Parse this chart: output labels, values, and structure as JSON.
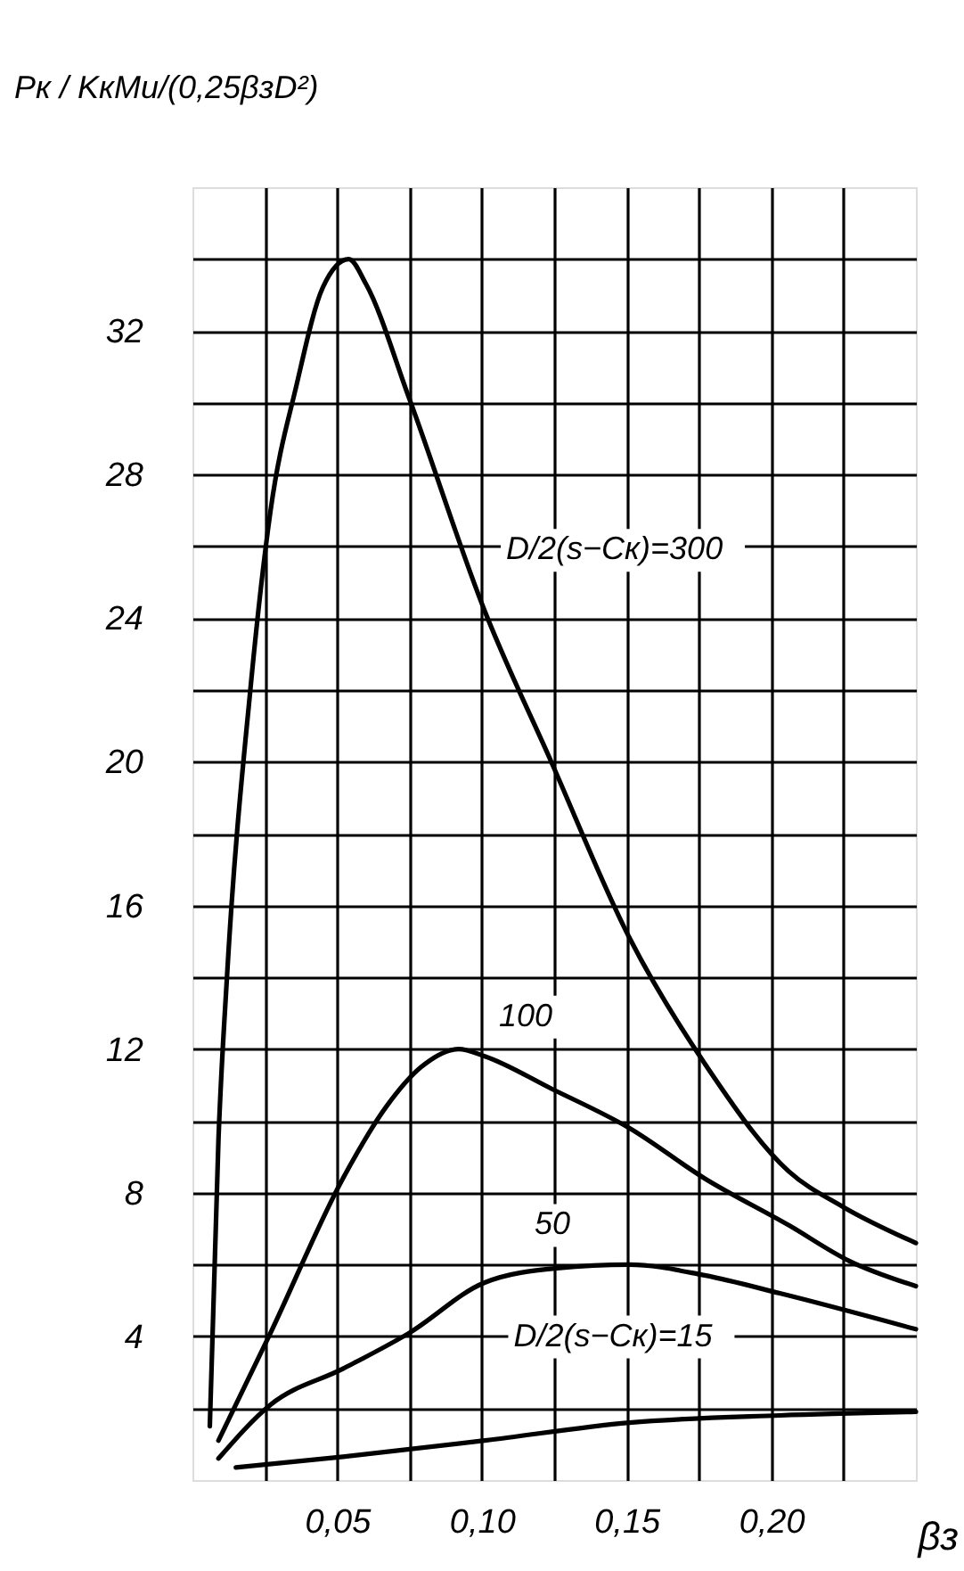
{
  "chart_data": {
    "type": "line",
    "xlabel": "βз",
    "ylabel": "Pк / KкMи/(0,25βзD²)",
    "xlim": [
      0,
      0.25
    ],
    "ylim": [
      0,
      36
    ],
    "xticks": [
      {
        "value": 0.025,
        "label": null
      },
      {
        "value": 0.05,
        "label": "0,05"
      },
      {
        "value": 0.075,
        "label": null
      },
      {
        "value": 0.1,
        "label": "0,10"
      },
      {
        "value": 0.125,
        "label": null
      },
      {
        "value": 0.15,
        "label": "0,15"
      },
      {
        "value": 0.175,
        "label": null
      },
      {
        "value": 0.2,
        "label": "0,20"
      },
      {
        "value": 0.225,
        "label": null
      }
    ],
    "yticks": [
      {
        "value": 2,
        "label": null
      },
      4,
      {
        "value": 6,
        "label": null
      },
      8,
      {
        "value": 10,
        "label": null
      },
      12,
      {
        "value": 14,
        "label": null
      },
      16,
      {
        "value": 18,
        "label": null
      },
      20,
      {
        "value": 22,
        "label": null
      },
      24,
      {
        "value": 26,
        "label": null
      },
      28,
      {
        "value": 30,
        "label": null
      },
      32,
      {
        "value": 34,
        "label": null
      }
    ],
    "grid": true,
    "line_style": "solid",
    "series": [
      {
        "color": "#000000",
        "x": [
          0.006,
          0.009,
          0.012,
          0.02,
          0.027,
          0.036,
          0.045,
          0.054,
          0.06,
          0.075,
          0.101,
          0.124,
          0.151,
          0.177,
          0.206,
          0.225,
          0.25
        ],
        "values": [
          1.5,
          9.5,
          14.1,
          22,
          27,
          30.5,
          33.2,
          34,
          33.3,
          30.1,
          24.2,
          20,
          15.1,
          11.6,
          8.6,
          7.6,
          6.6
        ]
      },
      {
        "color": "#000000",
        "x": [
          0.009,
          0.027,
          0.052,
          0.067,
          0.079,
          0.092,
          0.101,
          0.124,
          0.151,
          0.177,
          0.206,
          0.227,
          0.25
        ],
        "values": [
          1.1,
          4.1,
          8.4,
          10.4,
          11.5,
          12,
          11.8,
          10.9,
          9.8,
          8.4,
          7.1,
          6.1,
          5.4
        ]
      },
      {
        "color": "#000000",
        "x": [
          0.009,
          0.027,
          0.052,
          0.075,
          0.101,
          0.126,
          0.151,
          0.177,
          0.203,
          0.25
        ],
        "values": [
          0.6,
          2.1,
          3.1,
          4.1,
          5.5,
          5.9,
          6,
          5.7,
          5.2,
          4.2
        ]
      },
      {
        "color": "#000000",
        "x": [
          0.015,
          0.052,
          0.101,
          0.151,
          0.203,
          0.25
        ],
        "values": [
          0.35,
          0.65,
          1.1,
          1.6,
          1.8,
          1.9
        ]
      }
    ],
    "annotations": [
      {
        "text": "D/2(s−Cк)=300",
        "x": 0.101,
        "y": 24.2
      },
      {
        "text": "100",
        "x": 0.101,
        "y": 11.8
      },
      {
        "text": "50",
        "x": 0.117,
        "y": 5.8
      },
      {
        "text": "D/2(s−Cк)=15",
        "x": 0.151,
        "y": 1.6
      }
    ]
  }
}
